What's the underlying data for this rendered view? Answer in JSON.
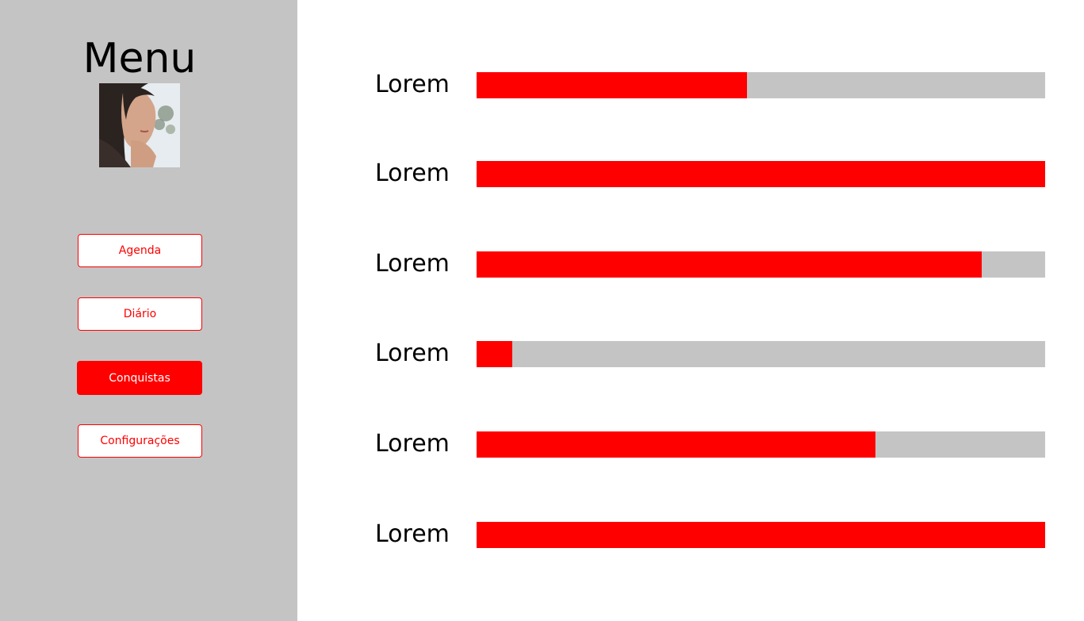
{
  "sidebar": {
    "title": "Menu",
    "avatar_icon": "user-photo",
    "background": "#c4c4c4",
    "nav": [
      {
        "label": "Agenda",
        "active": false
      },
      {
        "label": "Diário",
        "active": false
      },
      {
        "label": "Conquistas",
        "active": true
      },
      {
        "label": "Configurações",
        "active": false
      }
    ]
  },
  "progress": [
    {
      "label": "Lorem",
      "fraction": 0.476
    },
    {
      "label": "Lorem",
      "fraction": 1.0
    },
    {
      "label": "Lorem",
      "fraction": 0.889
    },
    {
      "label": "Lorem",
      "fraction": 0.063
    },
    {
      "label": "Lorem",
      "fraction": 0.701
    },
    {
      "label": "Lorem",
      "fraction": 1.0
    }
  ],
  "colors": {
    "accent": "#ff0000",
    "track": "#c4c4c4",
    "text": "#000000"
  }
}
